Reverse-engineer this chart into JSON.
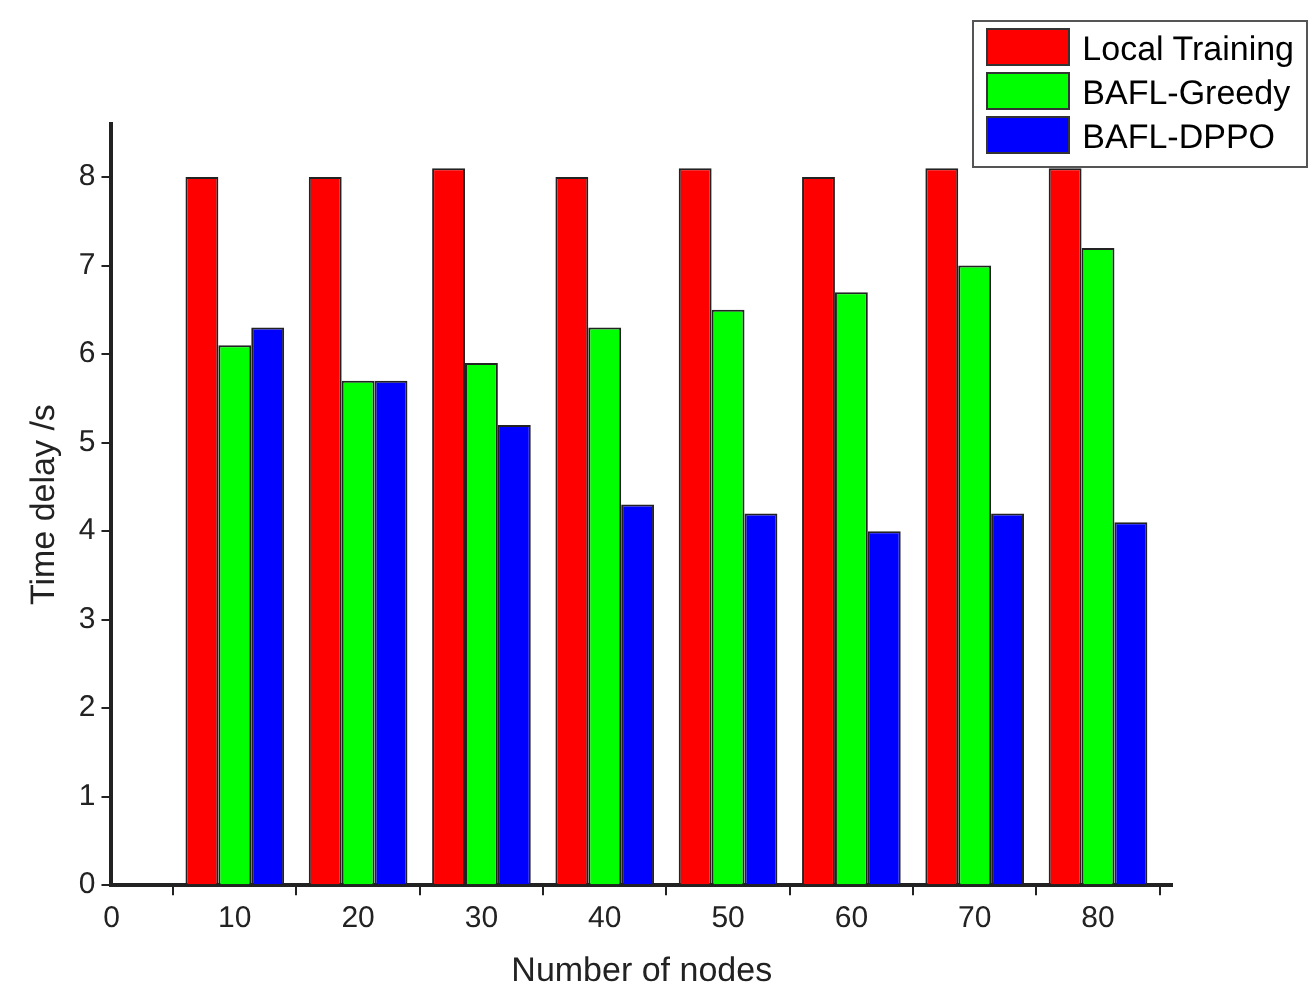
{
  "chart_data": {
    "type": "bar",
    "xlabel": "Number of nodes",
    "ylabel": "Time delay /s",
    "x": [
      10,
      20,
      30,
      40,
      50,
      60,
      70,
      80
    ],
    "series": [
      {
        "name": "Local Training",
        "color": "#ff0000",
        "values": [
          8,
          8,
          8.1,
          8,
          8.1,
          8,
          8.1,
          8.1
        ]
      },
      {
        "name": "BAFL-Greedy",
        "color": "#00ff00",
        "values": [
          6.1,
          5.7,
          5.9,
          6.3,
          6.5,
          6.7,
          7.0,
          7.2
        ]
      },
      {
        "name": "BAFL-DPPO",
        "color": "#0000ff",
        "values": [
          6.3,
          5.7,
          5.2,
          4.3,
          4.2,
          4.0,
          4.2,
          4.1
        ]
      }
    ],
    "xlim": [
      0,
      86
    ],
    "xticks": [
      0,
      10,
      20,
      30,
      40,
      50,
      60,
      70,
      80
    ],
    "ylim": [
      0,
      8.6
    ],
    "yticks": [
      0,
      1,
      2,
      3,
      4,
      5,
      6,
      7,
      8
    ],
    "grid": false,
    "legend": "top right"
  }
}
